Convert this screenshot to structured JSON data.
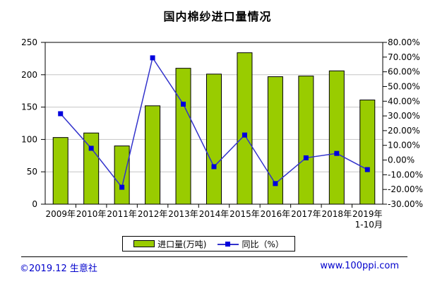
{
  "title": "国内棉纱进口量情况",
  "chart_data": {
    "type": "bar",
    "title": "国内棉纱进口量情况",
    "categories": [
      {
        "label": "2009年"
      },
      {
        "label": "2010年"
      },
      {
        "label": "2011年"
      },
      {
        "label": "2012年"
      },
      {
        "label": "2013年"
      },
      {
        "label": "2014年"
      },
      {
        "label": "2015年"
      },
      {
        "label": "2016年"
      },
      {
        "label": "2017年"
      },
      {
        "label": "2018年"
      },
      {
        "label": "2019年",
        "sublabel": "1-10月"
      }
    ],
    "series": [
      {
        "name": "进口量(万吨)",
        "type": "bar",
        "axis": "left",
        "color": "#99CC00",
        "border_color": "#000000",
        "values": [
          103,
          110,
          90,
          152,
          210,
          201,
          234,
          197,
          198,
          206,
          161
        ]
      },
      {
        "name": "同比（%）",
        "type": "line",
        "axis": "right",
        "color": "#3333CC",
        "marker": "square",
        "marker_color": "#0000DD",
        "values": [
          31.5,
          8.0,
          -18.5,
          69.5,
          38.0,
          -4.5,
          17.0,
          -16.0,
          1.5,
          4.5,
          -6.5
        ]
      }
    ],
    "left_axis": {
      "min": 0,
      "max": 250,
      "step": 50,
      "tick_labels": [
        "0",
        "50",
        "100",
        "150",
        "200",
        "250"
      ]
    },
    "right_axis": {
      "min": -30,
      "max": 80,
      "step": 10,
      "tick_labels": [
        "80.00%",
        "70.00%",
        "60.00%",
        "50.00%",
        "40.00%",
        "30.00%",
        "20.00%",
        "10.00%",
        "0.00%",
        "-10.00%",
        "-20.00%",
        "-30.00%"
      ]
    },
    "grid": true,
    "grid_color": "#C6C6C6",
    "axis_color": "#000000",
    "legend_position": "bottom"
  },
  "legend": {
    "items": [
      {
        "label": "进口量(万吨)"
      },
      {
        "label": "同比（%）"
      }
    ]
  },
  "footer": {
    "copyright": "©2019.12 生意社",
    "website": "www.100ppi.com",
    "text_color": "#0000CC"
  }
}
